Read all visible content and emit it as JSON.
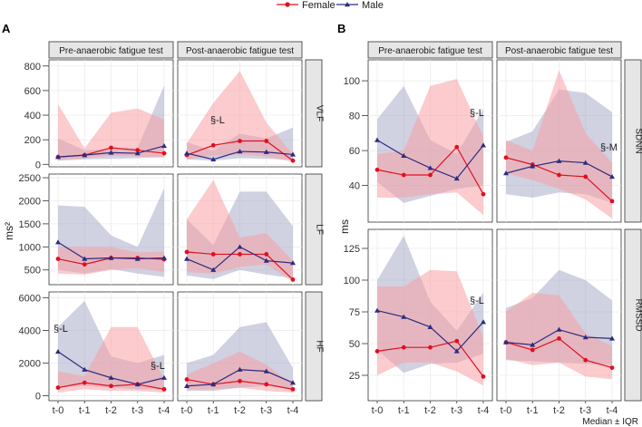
{
  "legend": {
    "items": [
      {
        "label": "Female",
        "color": "#e0101f",
        "marker": "circle"
      },
      {
        "label": "Male",
        "color": "#2c2c7e",
        "marker": "triangle"
      }
    ]
  },
  "footnote": "Median ± IQR",
  "colors": {
    "female_line": "#e0101f",
    "male_line": "#2c2c7e",
    "female_band": "#f7a1a6",
    "male_band": "#a9abc8"
  },
  "chart_data": [
    {
      "panel": "A",
      "type": "line",
      "ylabel": "ms²",
      "x": [
        "t-0",
        "t-1",
        "t-2",
        "t-3",
        "t-4"
      ],
      "columns": [
        "Pre-anaerobic fatigue test",
        "Post-anaerobic fatigue test"
      ],
      "rows": [
        {
          "label": "VLF",
          "yticks": [
            0,
            200,
            400,
            600,
            800
          ],
          "ylim": [
            -20,
            850
          ],
          "facets": [
            {
              "annotations": [],
              "series": [
                {
                  "name": "Female",
                  "values": [
                    60,
                    75,
                    135,
                    115,
                    90
                  ],
                  "lower": [
                    35,
                    50,
                    70,
                    65,
                    55
                  ],
                  "upper": [
                    490,
                    130,
                    420,
                    455,
                    365
                  ]
                },
                {
                  "name": "Male",
                  "values": [
                    60,
                    75,
                    95,
                    90,
                    150
                  ],
                  "lower": [
                    30,
                    40,
                    45,
                    50,
                    60
                  ],
                  "upper": [
                    210,
                    115,
                    125,
                    135,
                    640
                  ]
                }
              ]
            },
            {
              "annotations": [
                "§-L"
              ],
              "series": [
                {
                  "name": "Female",
                  "values": [
                    75,
                    155,
                    190,
                    190,
                    30
                  ],
                  "lower": [
                    40,
                    70,
                    80,
                    65,
                    20
                  ],
                  "upper": [
                    170,
                    500,
                    760,
                    340,
                    80
                  ]
                },
                {
                  "name": "Male",
                  "values": [
                    90,
                    40,
                    105,
                    100,
                    80
                  ],
                  "lower": [
                    40,
                    30,
                    50,
                    45,
                    35
                  ],
                  "upper": [
                    180,
                    110,
                    250,
                    210,
                    300
                  ]
                }
              ]
            }
          ]
        },
        {
          "label": "LF",
          "yticks": [
            500,
            1000,
            1500,
            2000,
            2500
          ],
          "ylim": [
            180,
            2580
          ],
          "facets": [
            {
              "annotations": [],
              "series": [
                {
                  "name": "Female",
                  "values": [
                    740,
                    620,
                    760,
                    760,
                    730
                  ],
                  "lower": [
                    420,
                    400,
                    500,
                    540,
                    450
                  ],
                  "upper": [
                    1000,
                    1000,
                    1000,
                    880,
                    900
                  ]
                },
                {
                  "name": "Male",
                  "values": [
                    1100,
                    740,
                    760,
                    740,
                    760
                  ],
                  "lower": [
                    500,
                    420,
                    520,
                    420,
                    350
                  ],
                  "upper": [
                    1900,
                    1870,
                    1250,
                    1000,
                    2270
                  ]
                }
              ]
            },
            {
              "annotations": [],
              "series": [
                {
                  "name": "Female",
                  "values": [
                    890,
                    840,
                    840,
                    840,
                    290
                  ],
                  "lower": [
                    450,
                    420,
                    560,
                    620,
                    240
                  ],
                  "upper": [
                    1600,
                    2450,
                    1200,
                    1300,
                    700
                  ]
                },
                {
                  "name": "Male",
                  "values": [
                    740,
                    500,
                    1000,
                    700,
                    650
                  ],
                  "lower": [
                    380,
                    300,
                    500,
                    400,
                    320
                  ],
                  "upper": [
                    1600,
                    1040,
                    2200,
                    2200,
                    1450
                  ]
                }
              ]
            }
          ]
        },
        {
          "label": "HF",
          "yticks": [
            0,
            2000,
            4000,
            6000
          ],
          "ylim": [
            -300,
            6350
          ],
          "facets": [
            {
              "annotations": [
                "§-L",
                "§-L"
              ],
              "series": [
                {
                  "name": "Female",
                  "values": [
                    500,
                    800,
                    600,
                    700,
                    400
                  ],
                  "lower": [
                    200,
                    400,
                    300,
                    300,
                    200
                  ],
                  "upper": [
                    1500,
                    1200,
                    4200,
                    4200,
                    1000
                  ]
                },
                {
                  "name": "Male",
                  "values": [
                    2700,
                    1600,
                    1100,
                    700,
                    1100
                  ],
                  "lower": [
                    500,
                    600,
                    500,
                    400,
                    400
                  ],
                  "upper": [
                    4200,
                    5800,
                    2400,
                    2000,
                    2500
                  ]
                }
              ]
            },
            {
              "annotations": [],
              "series": [
                {
                  "name": "Female",
                  "values": [
                    1000,
                    700,
                    900,
                    700,
                    400
                  ],
                  "lower": [
                    400,
                    400,
                    500,
                    300,
                    200
                  ],
                  "upper": [
                    1300,
                    2000,
                    2700,
                    1900,
                    700
                  ]
                },
                {
                  "name": "Male",
                  "values": [
                    600,
                    700,
                    1600,
                    1500,
                    800
                  ],
                  "lower": [
                    300,
                    300,
                    500,
                    600,
                    400
                  ],
                  "upper": [
                    2000,
                    2500,
                    4200,
                    4500,
                    1700
                  ]
                }
              ]
            }
          ]
        }
      ]
    },
    {
      "panel": "B",
      "type": "line",
      "ylabel": "ms",
      "x": [
        "t-0",
        "t-1",
        "t-2",
        "t-3",
        "t-4"
      ],
      "columns": [
        "Pre-anaerobic fatigue test",
        "Post-anaerobic fatigue test"
      ],
      "rows": [
        {
          "label": "SDNN",
          "yticks": [
            40,
            60,
            80,
            100
          ],
          "ylim": [
            19,
            112
          ],
          "facets": [
            {
              "annotations": [
                "§-L"
              ],
              "series": [
                {
                  "name": "Female",
                  "values": [
                    49,
                    46,
                    46,
                    62,
                    35
                  ],
                  "lower": [
                    33,
                    33,
                    35,
                    36,
                    23
                  ],
                  "upper": [
                    58,
                    60,
                    97,
                    101,
                    68
                  ]
                },
                {
                  "name": "Male",
                  "values": [
                    66,
                    57,
                    50,
                    44,
                    63
                  ],
                  "lower": [
                    42,
                    30,
                    34,
                    38,
                    40
                  ],
                  "upper": [
                    78,
                    97,
                    66,
                    58,
                    84
                  ]
                }
              ]
            },
            {
              "annotations": [
                "§-M"
              ],
              "series": [
                {
                  "name": "Female",
                  "values": [
                    56,
                    52,
                    46,
                    45,
                    31
                  ],
                  "lower": [
                    47,
                    43,
                    38,
                    32,
                    21
                  ],
                  "upper": [
                    66,
                    60,
                    106,
                    70,
                    53
                  ]
                },
                {
                  "name": "Male",
                  "values": [
                    47,
                    51,
                    54,
                    53,
                    45
                  ],
                  "lower": [
                    35,
                    33,
                    36,
                    35,
                    30
                  ],
                  "upper": [
                    65,
                    71,
                    95,
                    93,
                    82
                  ]
                }
              ]
            }
          ]
        },
        {
          "label": "RMSSD",
          "yticks": [
            25,
            50,
            75,
            100,
            125
          ],
          "ylim": [
            5,
            140
          ],
          "facets": [
            {
              "annotations": [
                "§-L"
              ],
              "series": [
                {
                  "name": "Female",
                  "values": [
                    44,
                    47,
                    47,
                    52,
                    24
                  ],
                  "lower": [
                    25,
                    35,
                    35,
                    28,
                    17
                  ],
                  "upper": [
                    95,
                    95,
                    108,
                    107,
                    55
                  ]
                },
                {
                  "name": "Male",
                  "values": [
                    76,
                    71,
                    63,
                    44,
                    67
                  ],
                  "lower": [
                    45,
                    27,
                    34,
                    35,
                    42
                  ],
                  "upper": [
                    100,
                    135,
                    83,
                    60,
                    90
                  ]
                }
              ]
            },
            {
              "annotations": [],
              "series": [
                {
                  "name": "Female",
                  "values": [
                    51,
                    45,
                    54,
                    37,
                    31
                  ],
                  "lower": [
                    38,
                    33,
                    35,
                    24,
                    22
                  ],
                  "upper": [
                    75,
                    90,
                    88,
                    58,
                    48
                  ]
                },
                {
                  "name": "Male",
                  "values": [
                    51,
                    49,
                    61,
                    55,
                    54
                  ],
                  "lower": [
                    37,
                    36,
                    35,
                    34,
                    33
                  ],
                  "upper": [
                    78,
                    86,
                    108,
                    100,
                    84
                  ]
                }
              ]
            }
          ]
        }
      ]
    }
  ]
}
